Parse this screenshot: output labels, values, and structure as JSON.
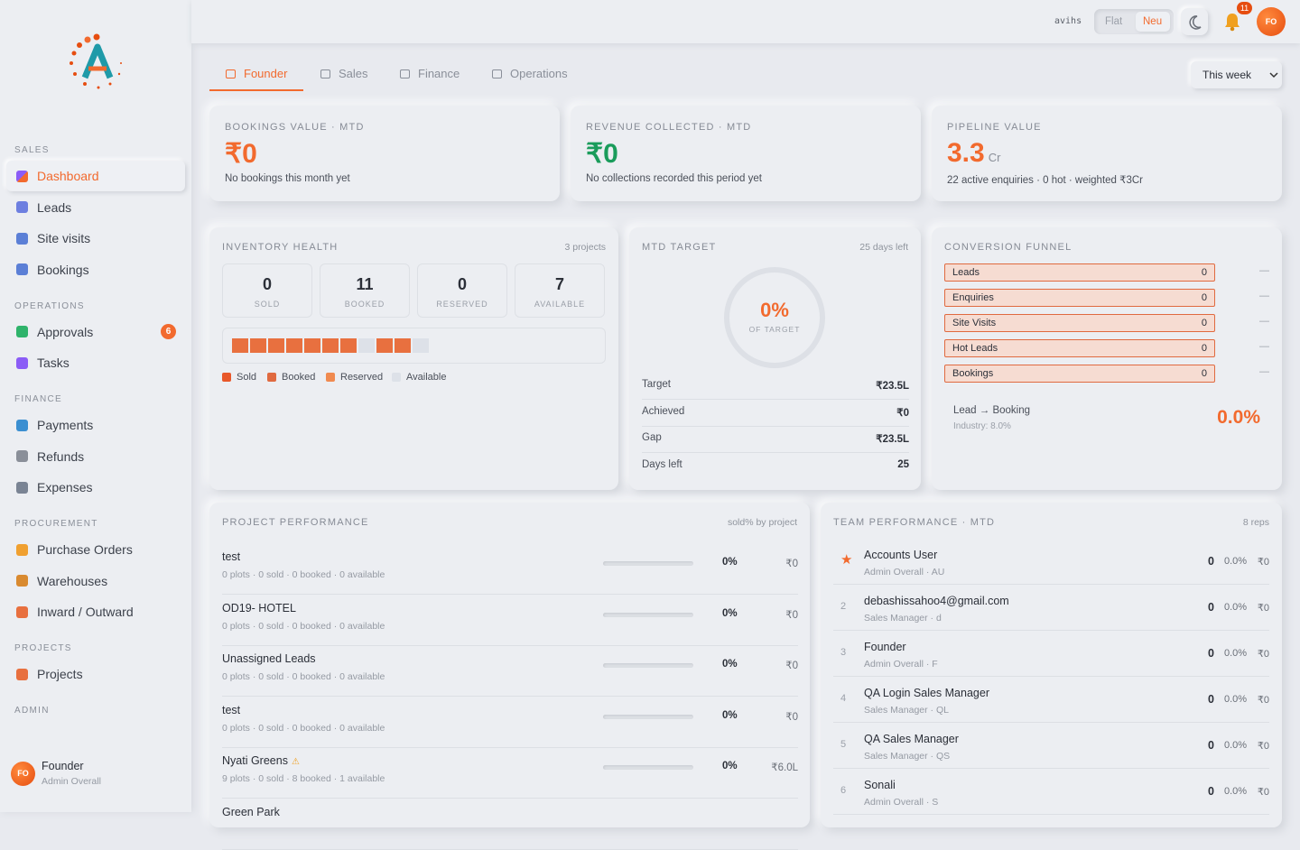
{
  "sidebar": {
    "sections": [
      {
        "label": "SALES",
        "items": [
          {
            "label": "Dashboard"
          },
          {
            "label": "Leads"
          },
          {
            "label": "Site visits"
          },
          {
            "label": "Bookings"
          }
        ]
      },
      {
        "label": "OPERATIONS",
        "items": [
          {
            "label": "Approvals",
            "badge": "6"
          },
          {
            "label": "Tasks"
          }
        ]
      },
      {
        "label": "FINANCE",
        "items": [
          {
            "label": "Payments"
          },
          {
            "label": "Refunds"
          },
          {
            "label": "Expenses"
          }
        ]
      },
      {
        "label": "PROCUREMENT",
        "items": [
          {
            "label": "Purchase Orders"
          },
          {
            "label": "Warehouses"
          },
          {
            "label": "Inward / Outward"
          }
        ]
      },
      {
        "label": "PROJECTS",
        "items": [
          {
            "label": "Projects"
          }
        ]
      },
      {
        "label": "ADMIN",
        "items": []
      }
    ],
    "user": {
      "initials": "FO",
      "name": "Founder",
      "role": "Admin Overall"
    }
  },
  "topbar": {
    "user": "avihs",
    "modes": [
      "Flat",
      "Neu"
    ],
    "notifications": "11",
    "initials": "FO"
  },
  "tabs": [
    "Founder",
    "Sales",
    "Finance",
    "Operations"
  ],
  "period": "This week",
  "kpis": [
    {
      "label": "BOOKINGS VALUE · MTD",
      "value": "₹0",
      "note": "No bookings this month yet"
    },
    {
      "label": "REVENUE COLLECTED · MTD",
      "value": "₹0",
      "note": "No collections recorded this period yet"
    },
    {
      "label": "PIPELINE VALUE",
      "value": "3.3",
      "unit": "Cr",
      "note": "22 active enquiries · 0 hot · weighted ₹3Cr"
    }
  ],
  "inventory": {
    "title": "INVENTORY HEALTH",
    "meta": "3 projects",
    "stats": [
      {
        "value": "0",
        "label": "SOLD"
      },
      {
        "value": "11",
        "label": "BOOKED"
      },
      {
        "value": "0",
        "label": "RESERVED"
      },
      {
        "value": "7",
        "label": "AVAILABLE"
      }
    ],
    "legend": [
      "Sold",
      "Booked",
      "Reserved",
      "Available"
    ]
  },
  "target": {
    "title": "MTD TARGET",
    "meta": "25 days left",
    "percent": "0%",
    "caption": "OF TARGET",
    "rows": [
      [
        "Target",
        "₹23.5L"
      ],
      [
        "Achieved",
        "₹0"
      ],
      [
        "Gap",
        "₹23.5L"
      ],
      [
        "Days left",
        "25"
      ]
    ]
  },
  "funnel": {
    "title": "CONVERSION FUNNEL",
    "stages": [
      {
        "name": "Leads",
        "value": "0",
        "change": "—"
      },
      {
        "name": "Enquiries",
        "value": "0",
        "change": "—"
      },
      {
        "name": "Site Visits",
        "value": "0",
        "change": "—"
      },
      {
        "name": "Hot Leads",
        "value": "0",
        "change": "—"
      },
      {
        "name": "Bookings",
        "value": "0",
        "change": "—"
      }
    ],
    "conversion": {
      "label": "Lead → Booking",
      "benchmark": "Industry: 8.0%",
      "rate": "0.0%"
    }
  },
  "projects": {
    "title": "PROJECT PERFORMANCE",
    "meta": "sold% by project",
    "rows": [
      {
        "name": "test",
        "detail": "0 plots · 0 sold · 0 booked · 0 available",
        "percent": "0%",
        "amount": "₹0"
      },
      {
        "name": "OD19- HOTEL",
        "detail": "0 plots · 0 sold · 0 booked · 0 available",
        "percent": "0%",
        "amount": "₹0"
      },
      {
        "name": "Unassigned Leads",
        "detail": "0 plots · 0 sold · 0 booked · 0 available",
        "percent": "0%",
        "amount": "₹0"
      },
      {
        "name": "test",
        "detail": "0 plots · 0 sold · 0 booked · 0 available",
        "percent": "0%",
        "amount": "₹0"
      },
      {
        "name": "Nyati Greens",
        "detail": "9 plots · 0 sold · 8 booked · 1 available",
        "percent": "0%",
        "amount": "₹6.0L",
        "warning": true
      },
      {
        "name": "Green Park"
      }
    ]
  },
  "team": {
    "title": "TEAM PERFORMANCE · MTD",
    "meta": "8 reps",
    "rows": [
      {
        "rank": "★",
        "name": "Accounts User",
        "role": "Admin Overall · AU",
        "count": "0",
        "percent": "0.0%",
        "amount": "₹0"
      },
      {
        "rank": "2",
        "name": "debashissahoo4@gmail.com",
        "role": "Sales Manager · d",
        "count": "0",
        "percent": "0.0%",
        "amount": "₹0"
      },
      {
        "rank": "3",
        "name": "Founder",
        "role": "Admin Overall · F",
        "count": "0",
        "percent": "0.0%",
        "amount": "₹0"
      },
      {
        "rank": "4",
        "name": "QA Login Sales Manager",
        "role": "Sales Manager · QL",
        "count": "0",
        "percent": "0.0%",
        "amount": "₹0"
      },
      {
        "rank": "5",
        "name": "QA Sales Manager",
        "role": "Sales Manager · QS",
        "count": "0",
        "percent": "0.0%",
        "amount": "₹0"
      },
      {
        "rank": "6",
        "name": "Sonali",
        "role": "Admin Overall · S",
        "count": "0",
        "percent": "0.0%",
        "amount": "₹0"
      }
    ]
  }
}
